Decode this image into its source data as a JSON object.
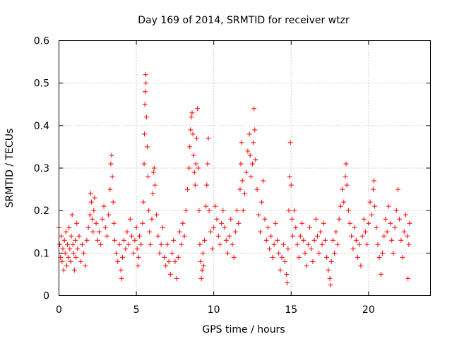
{
  "chart_data": {
    "type": "scatter",
    "title": "Day 169 of 2014, SRMTID for receiver wtzr",
    "xlabel": "GPS time / hours",
    "ylabel": "SRMTID / TECUs",
    "xlim": [
      0,
      24
    ],
    "ylim": [
      0,
      0.6
    ],
    "xticks": [
      0,
      5,
      10,
      15,
      20
    ],
    "xtick_labels": [
      "0",
      "5",
      "10",
      "15",
      "20"
    ],
    "yticks": [
      0,
      0.1,
      0.2,
      0.3,
      0.4,
      0.5,
      0.6
    ],
    "ytick_labels": [
      "0",
      "0.1",
      "0.2",
      "0.3",
      "0.4",
      "0.5",
      "0.6"
    ],
    "grid": true,
    "marker": "+",
    "color": "#ff0000",
    "series": [
      {
        "name": "SRMTID",
        "points": [
          [
            0.0,
            0.16
          ],
          [
            0.05,
            0.12
          ],
          [
            0.1,
            0.09
          ],
          [
            0.15,
            0.14
          ],
          [
            0.2,
            0.08
          ],
          [
            0.25,
            0.11
          ],
          [
            0.3,
            0.06
          ],
          [
            0.35,
            0.13
          ],
          [
            0.4,
            0.1
          ],
          [
            0.45,
            0.15
          ],
          [
            0.5,
            0.07
          ],
          [
            0.55,
            0.12
          ],
          [
            0.6,
            0.09
          ],
          [
            0.65,
            0.16
          ],
          [
            0.7,
            0.11
          ],
          [
            0.75,
            0.08
          ],
          [
            0.8,
            0.14
          ],
          [
            0.85,
            0.19
          ],
          [
            0.9,
            0.12
          ],
          [
            0.95,
            0.1
          ],
          [
            1.0,
            0.06
          ],
          [
            1.05,
            0.13
          ],
          [
            1.1,
            0.09
          ],
          [
            1.15,
            0.17
          ],
          [
            1.2,
            0.11
          ],
          [
            1.3,
            0.14
          ],
          [
            1.4,
            0.08
          ],
          [
            1.5,
            0.12
          ],
          [
            1.6,
            0.1
          ],
          [
            1.7,
            0.07
          ],
          [
            1.8,
            0.13
          ],
          [
            1.9,
            0.16
          ],
          [
            2.0,
            0.19
          ],
          [
            2.05,
            0.24
          ],
          [
            2.1,
            0.22
          ],
          [
            2.15,
            0.18
          ],
          [
            2.2,
            0.15
          ],
          [
            2.25,
            0.2
          ],
          [
            2.3,
            0.23
          ],
          [
            2.4,
            0.17
          ],
          [
            2.5,
            0.13
          ],
          [
            2.6,
            0.15
          ],
          [
            2.7,
            0.12
          ],
          [
            2.8,
            0.18
          ],
          [
            2.9,
            0.21
          ],
          [
            3.0,
            0.16
          ],
          [
            3.1,
            0.14
          ],
          [
            3.2,
            0.19
          ],
          [
            3.3,
            0.25
          ],
          [
            3.35,
            0.31
          ],
          [
            3.4,
            0.33
          ],
          [
            3.45,
            0.28
          ],
          [
            3.5,
            0.22
          ],
          [
            3.55,
            0.17
          ],
          [
            3.6,
            0.13
          ],
          [
            3.7,
            0.1
          ],
          [
            3.8,
            0.08
          ],
          [
            3.9,
            0.12
          ],
          [
            4.0,
            0.06
          ],
          [
            4.05,
            0.04
          ],
          [
            4.1,
            0.09
          ],
          [
            4.2,
            0.13
          ],
          [
            4.3,
            0.11
          ],
          [
            4.4,
            0.15
          ],
          [
            4.5,
            0.12
          ],
          [
            4.6,
            0.18
          ],
          [
            4.7,
            0.14
          ],
          [
            4.8,
            0.1
          ],
          [
            4.9,
            0.13
          ],
          [
            5.0,
            0.16
          ],
          [
            5.05,
            0.11
          ],
          [
            5.1,
            0.07
          ],
          [
            5.15,
            0.09
          ],
          [
            5.2,
            0.14
          ],
          [
            5.3,
            0.12
          ],
          [
            5.4,
            0.17
          ],
          [
            5.45,
            0.22
          ],
          [
            5.5,
            0.31
          ],
          [
            5.52,
            0.38
          ],
          [
            5.55,
            0.45
          ],
          [
            5.57,
            0.48
          ],
          [
            5.6,
            0.52
          ],
          [
            5.62,
            0.5
          ],
          [
            5.65,
            0.42
          ],
          [
            5.7,
            0.35
          ],
          [
            5.75,
            0.28
          ],
          [
            5.8,
            0.2
          ],
          [
            5.85,
            0.15
          ],
          [
            5.9,
            0.12
          ],
          [
            6.0,
            0.18
          ],
          [
            6.05,
            0.24
          ],
          [
            6.1,
            0.29
          ],
          [
            6.15,
            0.3
          ],
          [
            6.2,
            0.26
          ],
          [
            6.3,
            0.19
          ],
          [
            6.4,
            0.14
          ],
          [
            6.5,
            0.1
          ],
          [
            6.6,
            0.12
          ],
          [
            6.7,
            0.16
          ],
          [
            6.8,
            0.09
          ],
          [
            6.9,
            0.07
          ],
          [
            7.0,
            0.12
          ],
          [
            7.1,
            0.08
          ],
          [
            7.2,
            0.05
          ],
          [
            7.3,
            0.1
          ],
          [
            7.4,
            0.13
          ],
          [
            7.5,
            0.08
          ],
          [
            7.6,
            0.04
          ],
          [
            7.7,
            0.09
          ],
          [
            7.8,
            0.15
          ],
          [
            7.9,
            0.12
          ],
          [
            8.0,
            0.17
          ],
          [
            8.1,
            0.14
          ],
          [
            8.2,
            0.2
          ],
          [
            8.3,
            0.25
          ],
          [
            8.4,
            0.3
          ],
          [
            8.45,
            0.35
          ],
          [
            8.5,
            0.39
          ],
          [
            8.55,
            0.42
          ],
          [
            8.6,
            0.43
          ],
          [
            8.65,
            0.38
          ],
          [
            8.7,
            0.33
          ],
          [
            8.75,
            0.29
          ],
          [
            8.8,
            0.26
          ],
          [
            8.85,
            0.31
          ],
          [
            8.9,
            0.37
          ],
          [
            8.95,
            0.44
          ],
          [
            9.0,
            0.3
          ],
          [
            9.05,
            0.2
          ],
          [
            9.1,
            0.12
          ],
          [
            9.15,
            0.08
          ],
          [
            9.2,
            0.04
          ],
          [
            9.25,
            0.06
          ],
          [
            9.3,
            0.1
          ],
          [
            9.35,
            0.07
          ],
          [
            9.4,
            0.13
          ],
          [
            9.5,
            0.21
          ],
          [
            9.55,
            0.26
          ],
          [
            9.6,
            0.31
          ],
          [
            9.65,
            0.37
          ],
          [
            9.7,
            0.2
          ],
          [
            9.8,
            0.15
          ],
          [
            9.9,
            0.11
          ],
          [
            10.0,
            0.16
          ],
          [
            10.1,
            0.21
          ],
          [
            10.2,
            0.18
          ],
          [
            10.3,
            0.14
          ],
          [
            10.4,
            0.12
          ],
          [
            10.5,
            0.17
          ],
          [
            10.6,
            0.2
          ],
          [
            10.7,
            0.16
          ],
          [
            10.8,
            0.13
          ],
          [
            10.9,
            0.1
          ],
          [
            11.0,
            0.14
          ],
          [
            11.1,
            0.18
          ],
          [
            11.2,
            0.12
          ],
          [
            11.3,
            0.09
          ],
          [
            11.4,
            0.15
          ],
          [
            11.5,
            0.2
          ],
          [
            11.6,
            0.17
          ],
          [
            11.7,
            0.25
          ],
          [
            11.75,
            0.31
          ],
          [
            11.8,
            0.36
          ],
          [
            11.85,
            0.27
          ],
          [
            11.9,
            0.2
          ],
          [
            12.0,
            0.24
          ],
          [
            12.1,
            0.29
          ],
          [
            12.2,
            0.34
          ],
          [
            12.3,
            0.38
          ],
          [
            12.35,
            0.33
          ],
          [
            12.4,
            0.28
          ],
          [
            12.5,
            0.31
          ],
          [
            12.55,
            0.36
          ],
          [
            12.6,
            0.44
          ],
          [
            12.65,
            0.39
          ],
          [
            12.7,
            0.32
          ],
          [
            12.8,
            0.25
          ],
          [
            12.9,
            0.19
          ],
          [
            13.0,
            0.15
          ],
          [
            13.1,
            0.22
          ],
          [
            13.2,
            0.27
          ],
          [
            13.3,
            0.18
          ],
          [
            13.4,
            0.13
          ],
          [
            13.5,
            0.16
          ],
          [
            13.6,
            0.11
          ],
          [
            13.7,
            0.14
          ],
          [
            13.8,
            0.09
          ],
          [
            13.9,
            0.12
          ],
          [
            14.0,
            0.17
          ],
          [
            14.1,
            0.13
          ],
          [
            14.2,
            0.1
          ],
          [
            14.3,
            0.06
          ],
          [
            14.4,
            0.09
          ],
          [
            14.5,
            0.12
          ],
          [
            14.6,
            0.08
          ],
          [
            14.7,
            0.05
          ],
          [
            14.75,
            0.03
          ],
          [
            14.8,
            0.11
          ],
          [
            14.85,
            0.2
          ],
          [
            14.9,
            0.28
          ],
          [
            14.95,
            0.36
          ],
          [
            15.0,
            0.26
          ],
          [
            15.05,
            0.18
          ],
          [
            15.1,
            0.14
          ],
          [
            15.2,
            0.2
          ],
          [
            15.3,
            0.16
          ],
          [
            15.4,
            0.12
          ],
          [
            15.5,
            0.09
          ],
          [
            15.6,
            0.14
          ],
          [
            15.7,
            0.17
          ],
          [
            15.8,
            0.13
          ],
          [
            15.9,
            0.1
          ],
          [
            16.0,
            0.07
          ],
          [
            16.1,
            0.12
          ],
          [
            16.2,
            0.16
          ],
          [
            16.3,
            0.11
          ],
          [
            16.4,
            0.08
          ],
          [
            16.5,
            0.13
          ],
          [
            16.6,
            0.18
          ],
          [
            16.7,
            0.14
          ],
          [
            16.8,
            0.1
          ],
          [
            16.9,
            0.15
          ],
          [
            17.0,
            0.12
          ],
          [
            17.1,
            0.17
          ],
          [
            17.2,
            0.13
          ],
          [
            17.3,
            0.09
          ],
          [
            17.4,
            0.06
          ],
          [
            17.5,
            0.04
          ],
          [
            17.55,
            0.025
          ],
          [
            17.6,
            0.08
          ],
          [
            17.7,
            0.13
          ],
          [
            17.8,
            0.1
          ],
          [
            17.9,
            0.15
          ],
          [
            18.0,
            0.12
          ],
          [
            18.1,
            0.18
          ],
          [
            18.2,
            0.21
          ],
          [
            18.3,
            0.25
          ],
          [
            18.4,
            0.22
          ],
          [
            18.5,
            0.28
          ],
          [
            18.55,
            0.31
          ],
          [
            18.6,
            0.26
          ],
          [
            18.7,
            0.2
          ],
          [
            18.8,
            0.17
          ],
          [
            18.9,
            0.14
          ],
          [
            19.0,
            0.11
          ],
          [
            19.1,
            0.16
          ],
          [
            19.2,
            0.13
          ],
          [
            19.3,
            0.09
          ],
          [
            19.4,
            0.12
          ],
          [
            19.5,
            0.07
          ],
          [
            19.6,
            0.14
          ],
          [
            19.7,
            0.18
          ],
          [
            19.8,
            0.15
          ],
          [
            19.9,
            0.12
          ],
          [
            20.0,
            0.17
          ],
          [
            20.1,
            0.22
          ],
          [
            20.2,
            0.19
          ],
          [
            20.3,
            0.25
          ],
          [
            20.35,
            0.27
          ],
          [
            20.4,
            0.21
          ],
          [
            20.5,
            0.16
          ],
          [
            20.6,
            0.12
          ],
          [
            20.7,
            0.09
          ],
          [
            20.8,
            0.05
          ],
          [
            20.9,
            0.1
          ],
          [
            21.0,
            0.14
          ],
          [
            21.1,
            0.18
          ],
          [
            21.2,
            0.15
          ],
          [
            21.3,
            0.21
          ],
          [
            21.4,
            0.17
          ],
          [
            21.5,
            0.13
          ],
          [
            21.6,
            0.1
          ],
          [
            21.7,
            0.16
          ],
          [
            21.8,
            0.2
          ],
          [
            21.9,
            0.25
          ],
          [
            22.0,
            0.18
          ],
          [
            22.1,
            0.13
          ],
          [
            22.2,
            0.09
          ],
          [
            22.3,
            0.15
          ],
          [
            22.4,
            0.19
          ],
          [
            22.5,
            0.14
          ],
          [
            22.55,
            0.04
          ],
          [
            22.6,
            0.12
          ],
          [
            22.65,
            0.17
          ]
        ]
      }
    ]
  }
}
